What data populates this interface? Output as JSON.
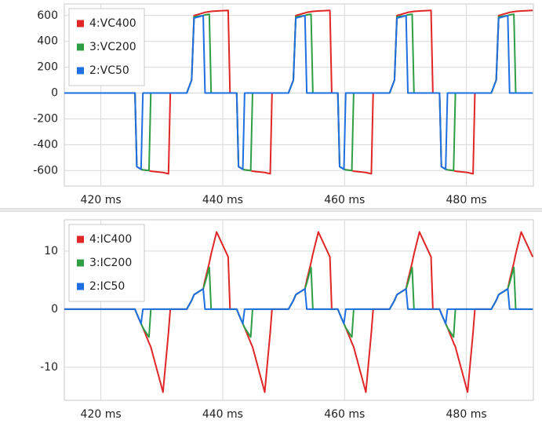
{
  "chart_data": [
    {
      "type": "line",
      "x": [
        414,
        425.6,
        425.9,
        426.6,
        426.9,
        427.9,
        428.2,
        430.2,
        431.1,
        431.4,
        434.1,
        434.9,
        435.3,
        436.8,
        437.1,
        437.8,
        438.1,
        439.0,
        440.9,
        441.2,
        442.3,
        442.6,
        443.3,
        443.6,
        444.6,
        444.9,
        446.9,
        447.8,
        448.1,
        450.8,
        451.6,
        452.0,
        453.5,
        453.8,
        454.5,
        454.8,
        455.7,
        457.6,
        457.9,
        458.9,
        459.2,
        459.9,
        460.2,
        461.2,
        461.5,
        463.5,
        464.4,
        464.7,
        467.4,
        468.2,
        468.6,
        470.1,
        470.4,
        471.1,
        471.4,
        472.3,
        474.2,
        474.5,
        475.6,
        475.9,
        476.6,
        476.9,
        477.9,
        478.2,
        480.2,
        481.1,
        481.4,
        484.1,
        484.9,
        485.3,
        486.8,
        487.1,
        487.8,
        488.1,
        489.0,
        490.9
      ],
      "series": [
        {
          "name": "4:VC400",
          "color": "#e02626",
          "values": [
            0,
            0,
            -570,
            -590,
            -595,
            -600,
            -605,
            -615,
            -625,
            0,
            0,
            100,
            600,
            620,
            625,
            630,
            632,
            635,
            640,
            0,
            0,
            -570,
            -590,
            -595,
            -600,
            -605,
            -615,
            -625,
            0,
            0,
            100,
            600,
            620,
            625,
            630,
            632,
            635,
            640,
            0,
            0,
            -570,
            -590,
            -595,
            -600,
            -605,
            -615,
            -625,
            0,
            0,
            100,
            600,
            620,
            625,
            630,
            632,
            635,
            640,
            0,
            0,
            -570,
            -590,
            -595,
            -600,
            -605,
            -615,
            -625,
            0,
            0,
            100,
            600,
            620,
            625,
            630,
            632,
            635,
            640
          ]
        },
        {
          "name": "3:VC200",
          "color": "#2e9e44",
          "values": [
            0,
            0,
            -570,
            -590,
            -595,
            -600,
            0,
            0,
            0,
            0,
            0,
            100,
            590,
            600,
            605,
            610,
            0,
            0,
            0,
            0,
            0,
            -570,
            -590,
            -595,
            -600,
            0,
            0,
            0,
            0,
            0,
            100,
            590,
            600,
            605,
            610,
            0,
            0,
            0,
            0,
            0,
            -570,
            -590,
            -595,
            -600,
            0,
            0,
            0,
            0,
            0,
            100,
            590,
            600,
            605,
            610,
            0,
            0,
            0,
            0,
            0,
            -570,
            -590,
            -595,
            -600,
            0,
            0,
            0,
            0,
            0,
            100,
            590,
            600,
            605,
            610,
            0,
            0,
            0
          ]
        },
        {
          "name": "2:VC50",
          "color": "#1e6fe0",
          "values": [
            0,
            0,
            -570,
            -590,
            0,
            0,
            0,
            0,
            0,
            0,
            0,
            100,
            580,
            600,
            0,
            0,
            0,
            0,
            0,
            0,
            0,
            -570,
            -590,
            0,
            0,
            0,
            0,
            0,
            0,
            0,
            100,
            580,
            600,
            0,
            0,
            0,
            0,
            0,
            0,
            0,
            -570,
            -590,
            0,
            0,
            0,
            0,
            0,
            0,
            0,
            100,
            580,
            600,
            0,
            0,
            0,
            0,
            0,
            0,
            0,
            -570,
            -590,
            0,
            0,
            0,
            0,
            0,
            0,
            0,
            100,
            580,
            600,
            0,
            0,
            0,
            0,
            0
          ]
        }
      ],
      "xlim": [
        414,
        491
      ],
      "xticks": [
        {
          "value": 420,
          "label": "420 ms"
        },
        {
          "value": 440,
          "label": "440 ms"
        },
        {
          "value": 460,
          "label": "460 ms"
        },
        {
          "value": 480,
          "label": "480 ms"
        }
      ],
      "ylim": [
        -720,
        690
      ],
      "yticks": [
        600,
        400,
        200,
        0,
        -200,
        -400,
        -600
      ],
      "grid": true,
      "legend": "top-left"
    },
    {
      "type": "line",
      "x": [
        414,
        425.6,
        425.9,
        426.6,
        426.9,
        427.9,
        428.2,
        430.2,
        431.1,
        431.4,
        434.1,
        434.9,
        435.3,
        436.8,
        437.1,
        437.8,
        438.1,
        439.0,
        440.9,
        441.2,
        442.3,
        442.6,
        443.3,
        443.6,
        444.6,
        444.9,
        446.9,
        447.8,
        448.1,
        450.8,
        451.6,
        452.0,
        453.5,
        453.8,
        454.5,
        454.8,
        455.7,
        457.6,
        457.9,
        458.9,
        459.2,
        459.9,
        460.2,
        461.2,
        461.5,
        463.5,
        464.4,
        464.7,
        467.4,
        468.2,
        468.6,
        470.1,
        470.4,
        471.1,
        471.4,
        472.3,
        474.2,
        474.5,
        475.6,
        475.9,
        476.6,
        476.9,
        477.9,
        478.2,
        480.2,
        481.1,
        481.4,
        484.1,
        484.9,
        485.3,
        486.8,
        487.1,
        487.8,
        488.1,
        489.0,
        490.9
      ],
      "series": [
        {
          "name": "4:IC400",
          "color": "#e02626",
          "values": [
            0,
            0,
            -0.8,
            -2.5,
            -3.2,
            -5.8,
            -6.5,
            -14.3,
            -4,
            0,
            0,
            1.5,
            2.5,
            3.5,
            5,
            8,
            9.5,
            13.3,
            9,
            0,
            0,
            -0.8,
            -2.5,
            -3.2,
            -5.8,
            -6.5,
            -14.3,
            -4,
            0,
            0,
            1.5,
            2.5,
            3.5,
            5,
            8,
            9.5,
            13.3,
            9,
            0,
            0,
            -0.8,
            -2.5,
            -3.2,
            -5.8,
            -6.5,
            -14.3,
            -4,
            0,
            0,
            1.5,
            2.5,
            3.5,
            5,
            8,
            9.5,
            13.3,
            9,
            0,
            0,
            -0.8,
            -2.5,
            -3.2,
            -5.8,
            -6.5,
            -14.3,
            -4,
            0,
            0,
            1.5,
            2.5,
            3.5,
            5,
            8,
            9.5,
            13.3,
            9
          ]
        },
        {
          "name": "3:IC200",
          "color": "#2e9e44",
          "values": [
            0,
            0,
            -0.8,
            -2.5,
            -3.2,
            -4.8,
            0,
            0,
            0,
            0,
            0,
            1.5,
            2.5,
            3.5,
            4.5,
            7.2,
            0,
            0,
            0,
            0,
            0,
            -0.8,
            -2.5,
            -3.2,
            -4.8,
            0,
            0,
            0,
            0,
            0,
            1.5,
            2.5,
            3.5,
            4.5,
            7.2,
            0,
            0,
            0,
            0,
            0,
            -0.8,
            -2.5,
            -3.2,
            -4.8,
            0,
            0,
            0,
            0,
            0,
            1.5,
            2.5,
            3.5,
            4.5,
            7.2,
            0,
            0,
            0,
            0,
            0,
            -0.8,
            -2.5,
            -3.2,
            -4.8,
            0,
            0,
            0,
            0,
            0,
            1.5,
            2.5,
            3.5,
            4.5,
            7.2,
            0,
            0,
            0
          ]
        },
        {
          "name": "2:IC50",
          "color": "#1e6fe0",
          "values": [
            0,
            0,
            -0.8,
            -2.5,
            0,
            0,
            0,
            0,
            0,
            0,
            0,
            1.5,
            2.5,
            3.5,
            0,
            0,
            0,
            0,
            0,
            0,
            0,
            -0.8,
            -2.5,
            0,
            0,
            0,
            0,
            0,
            0,
            0,
            1.5,
            2.5,
            3.5,
            0,
            0,
            0,
            0,
            0,
            0,
            0,
            -0.8,
            -2.5,
            0,
            0,
            0,
            0,
            0,
            0,
            0,
            1.5,
            2.5,
            3.5,
            0,
            0,
            0,
            0,
            0,
            0,
            0,
            -0.8,
            -2.5,
            0,
            0,
            0,
            0,
            0,
            0,
            0,
            1.5,
            2.5,
            3.5,
            0,
            0,
            0,
            0,
            0
          ]
        }
      ],
      "xlim": [
        414,
        491
      ],
      "xticks": [
        {
          "value": 420,
          "label": "420 ms"
        },
        {
          "value": 440,
          "label": "440 ms"
        },
        {
          "value": 460,
          "label": "460 ms"
        },
        {
          "value": 480,
          "label": "480 ms"
        }
      ],
      "ylim": [
        -15.7,
        15.4
      ],
      "yticks": [
        10,
        0,
        -10
      ],
      "grid": true,
      "legend": "top-left"
    }
  ]
}
